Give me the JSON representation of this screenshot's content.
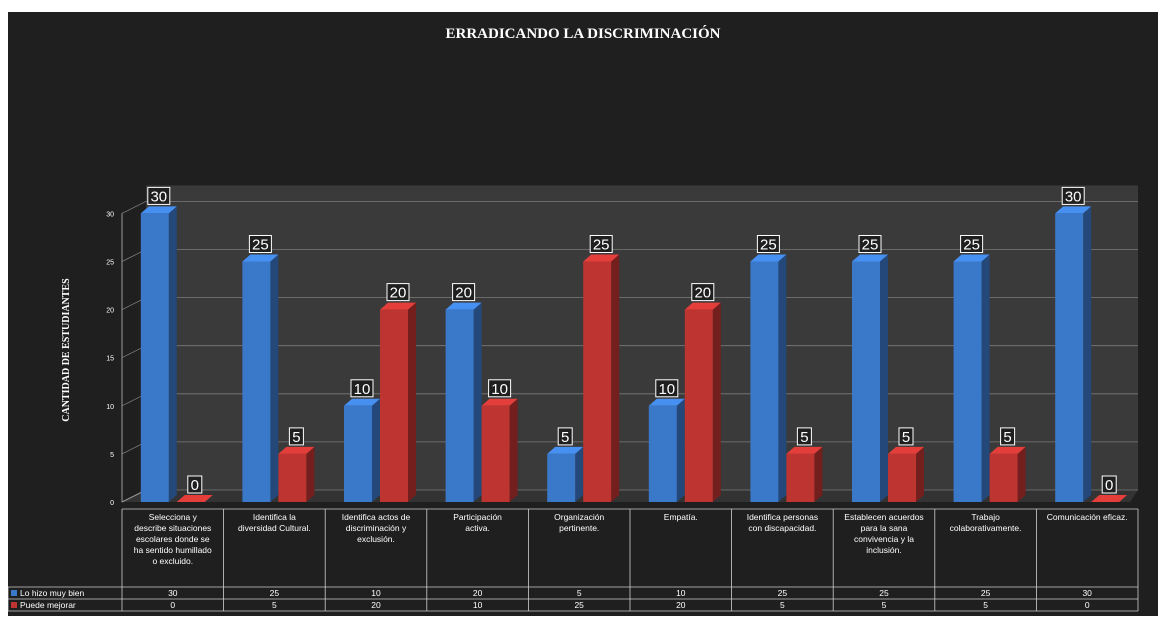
{
  "chart_data": {
    "type": "bar",
    "title": "ERRADICANDO LA DISCRIMINACIÓN",
    "xlabel": "",
    "ylabel": "CANTIDAD DE ESTUDIANTES",
    "ylim": [
      0,
      30
    ],
    "yticks": [
      0,
      5,
      10,
      15,
      20,
      25,
      30
    ],
    "grid": true,
    "legend": "bottom-table",
    "categories": [
      "Selecciona y describe situaciones escolares donde se ha sentido humillado o excluido.",
      "Identifica la diversidad Cultural.",
      "Identifica actos de discriminación y exclusión.",
      "Participación activa.",
      "Organización pertinente.",
      "Empatía.",
      "Identifica  personas con discapacidad.",
      "Establecen acuerdos para la sana convivencia y la inclusión.",
      "Trabajo colaborativamente.",
      "Comunicación eficaz."
    ],
    "series": [
      {
        "name": "Lo hizo muy bien",
        "color": "#3a78c9",
        "values": [
          30,
          25,
          10,
          20,
          5,
          10,
          25,
          25,
          25,
          30
        ]
      },
      {
        "name": "Puede mejorar",
        "color": "#be3431",
        "values": [
          0,
          5,
          20,
          10,
          25,
          20,
          5,
          5,
          5,
          0
        ]
      }
    ]
  }
}
